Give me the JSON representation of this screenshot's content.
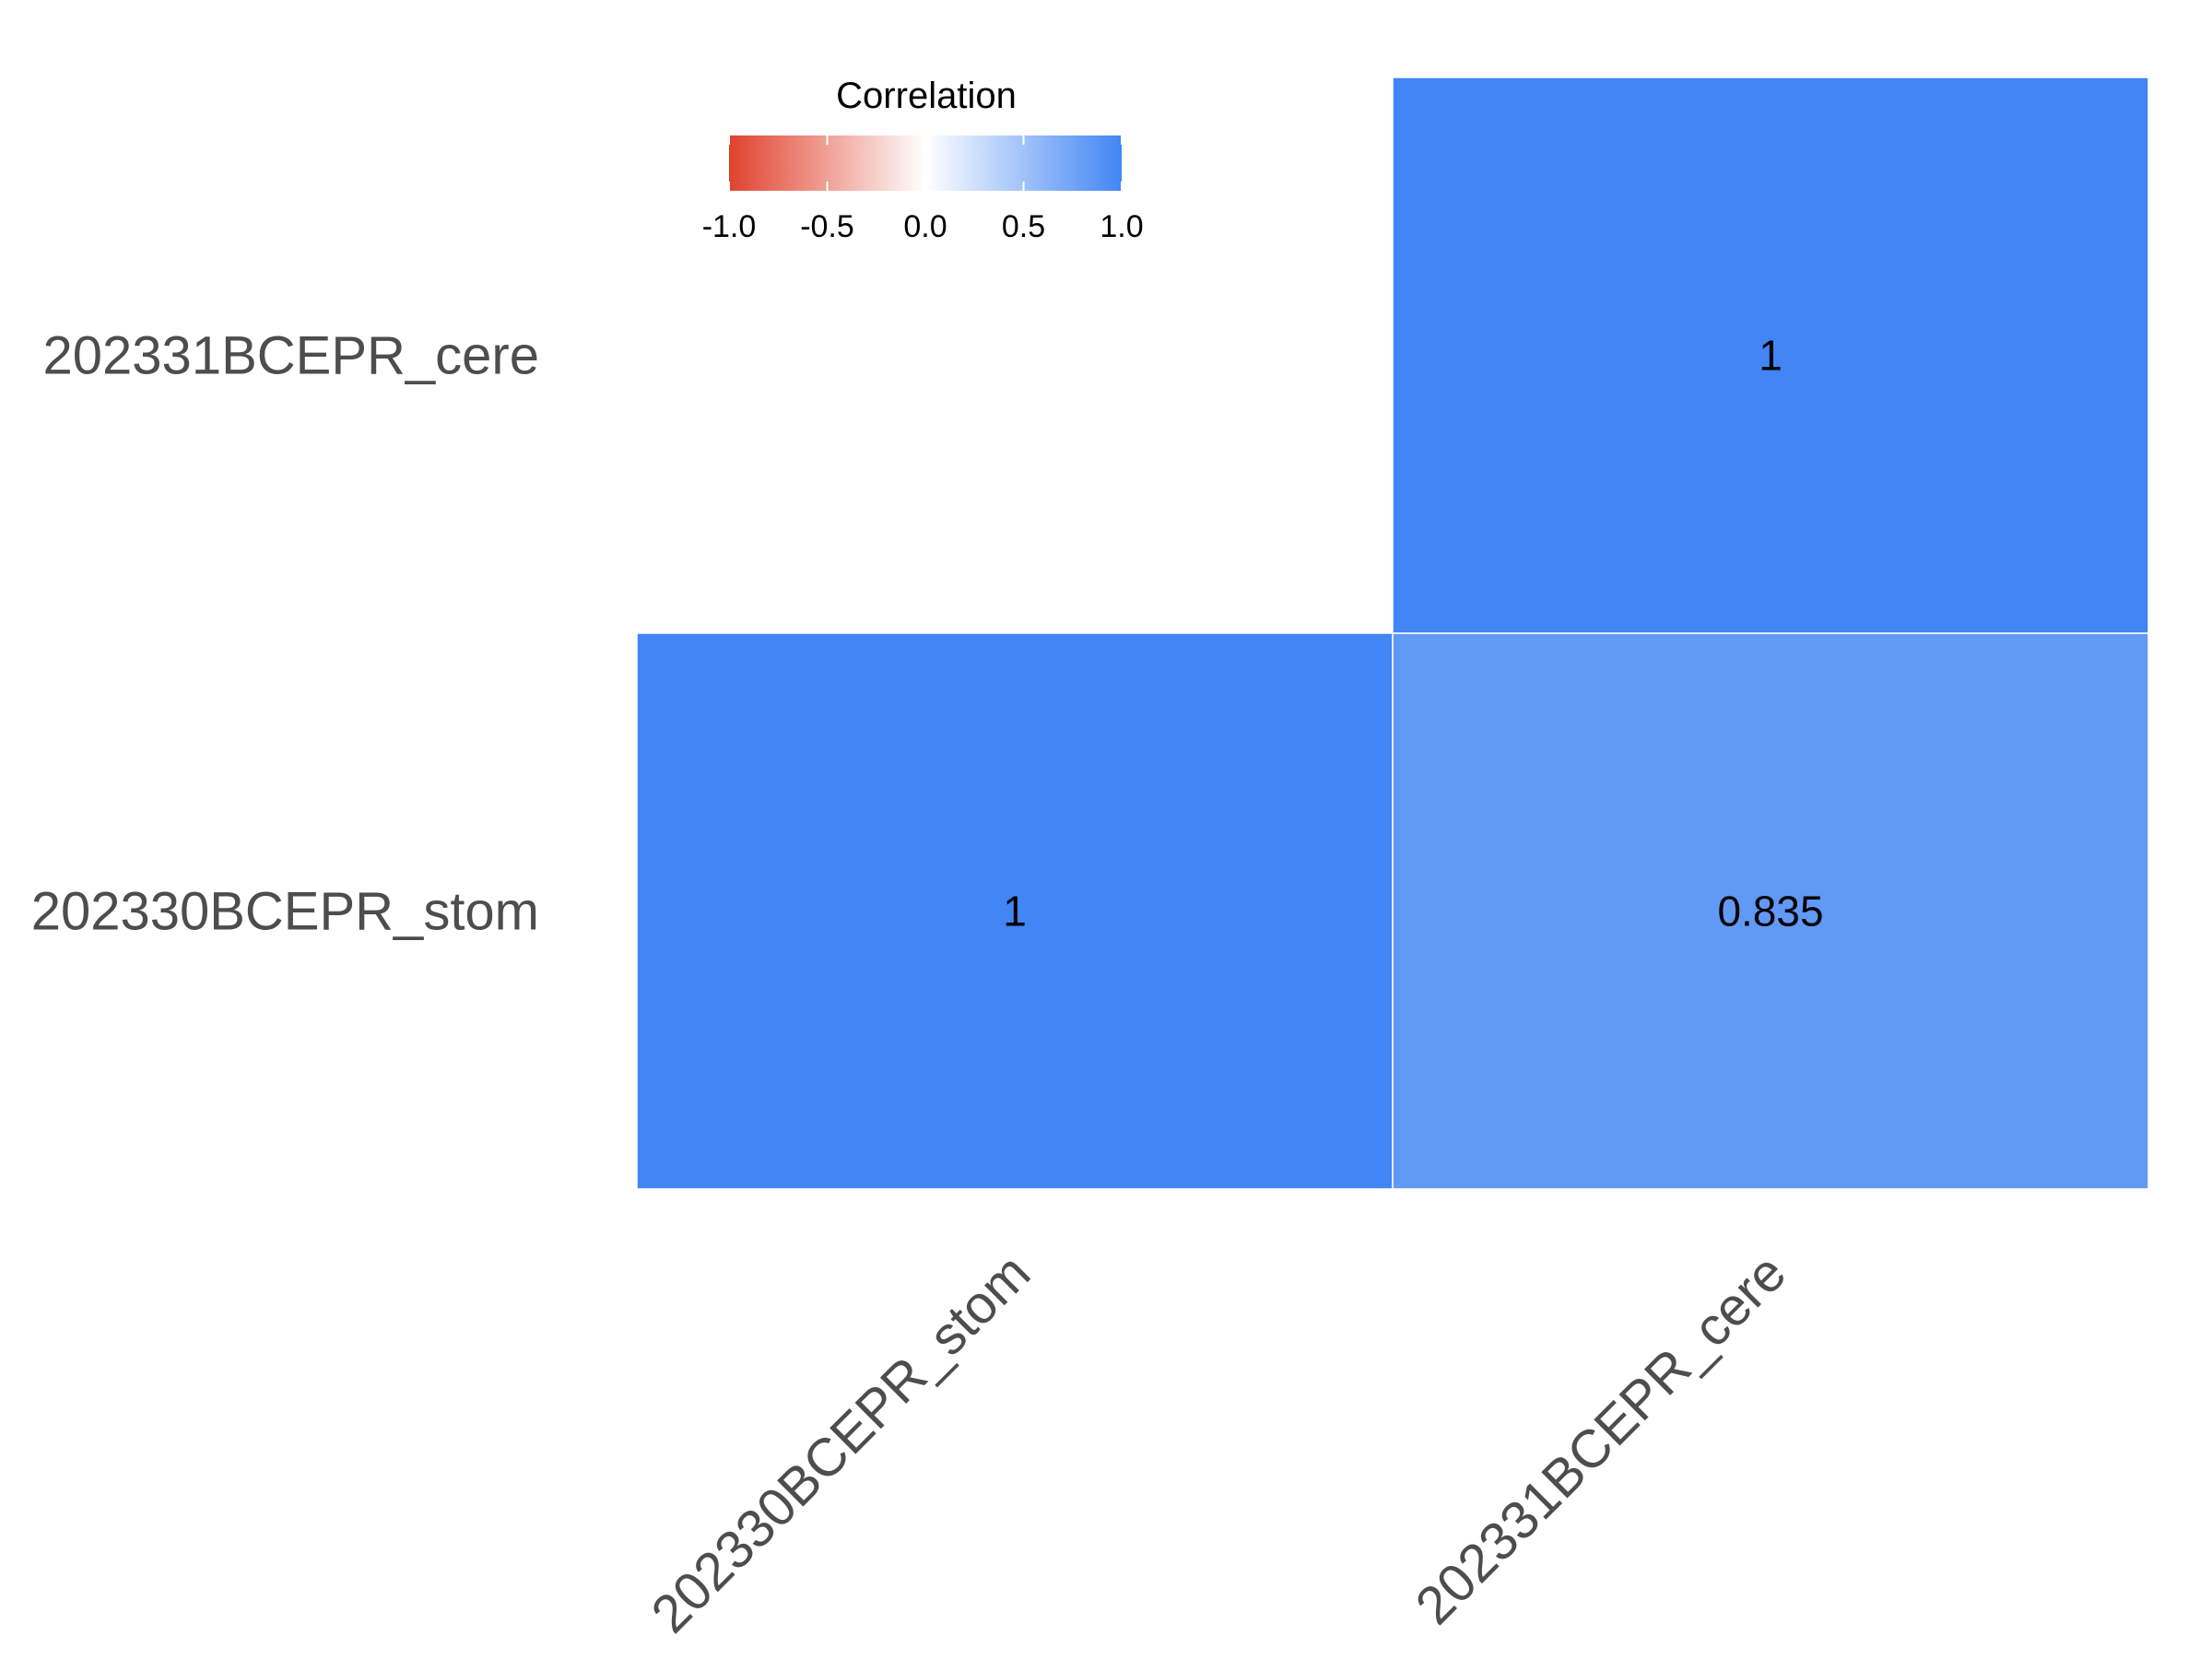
{
  "chart_data": {
    "type": "heatmap",
    "title": "",
    "xlabel": "",
    "ylabel": "",
    "x_categories": [
      "202330BCEPR_stom",
      "202331BCEPR_cere"
    ],
    "y_categories": [
      "202330BCEPR_stom",
      "202331BCEPR_cere"
    ],
    "cells": [
      {
        "x": "202330BCEPR_stom",
        "y": "202330BCEPR_stom",
        "value": 1,
        "label": "1"
      },
      {
        "x": "202331BCEPR_cere",
        "y": "202330BCEPR_stom",
        "value": 0.835,
        "label": "0.835"
      },
      {
        "x": "202331BCEPR_cere",
        "y": "202331BCEPR_cere",
        "value": 1,
        "label": "1"
      }
    ],
    "legend": {
      "title": "Correlation",
      "placement": "top-center",
      "range": [
        -1.0,
        1.0
      ],
      "ticks": [
        "-1.0",
        "-0.5",
        "0.0",
        "0.5",
        "1.0"
      ],
      "low_color": "#E0422E",
      "mid_color": "#FFFFFF",
      "high_color": "#4285F4"
    },
    "grid": false
  }
}
